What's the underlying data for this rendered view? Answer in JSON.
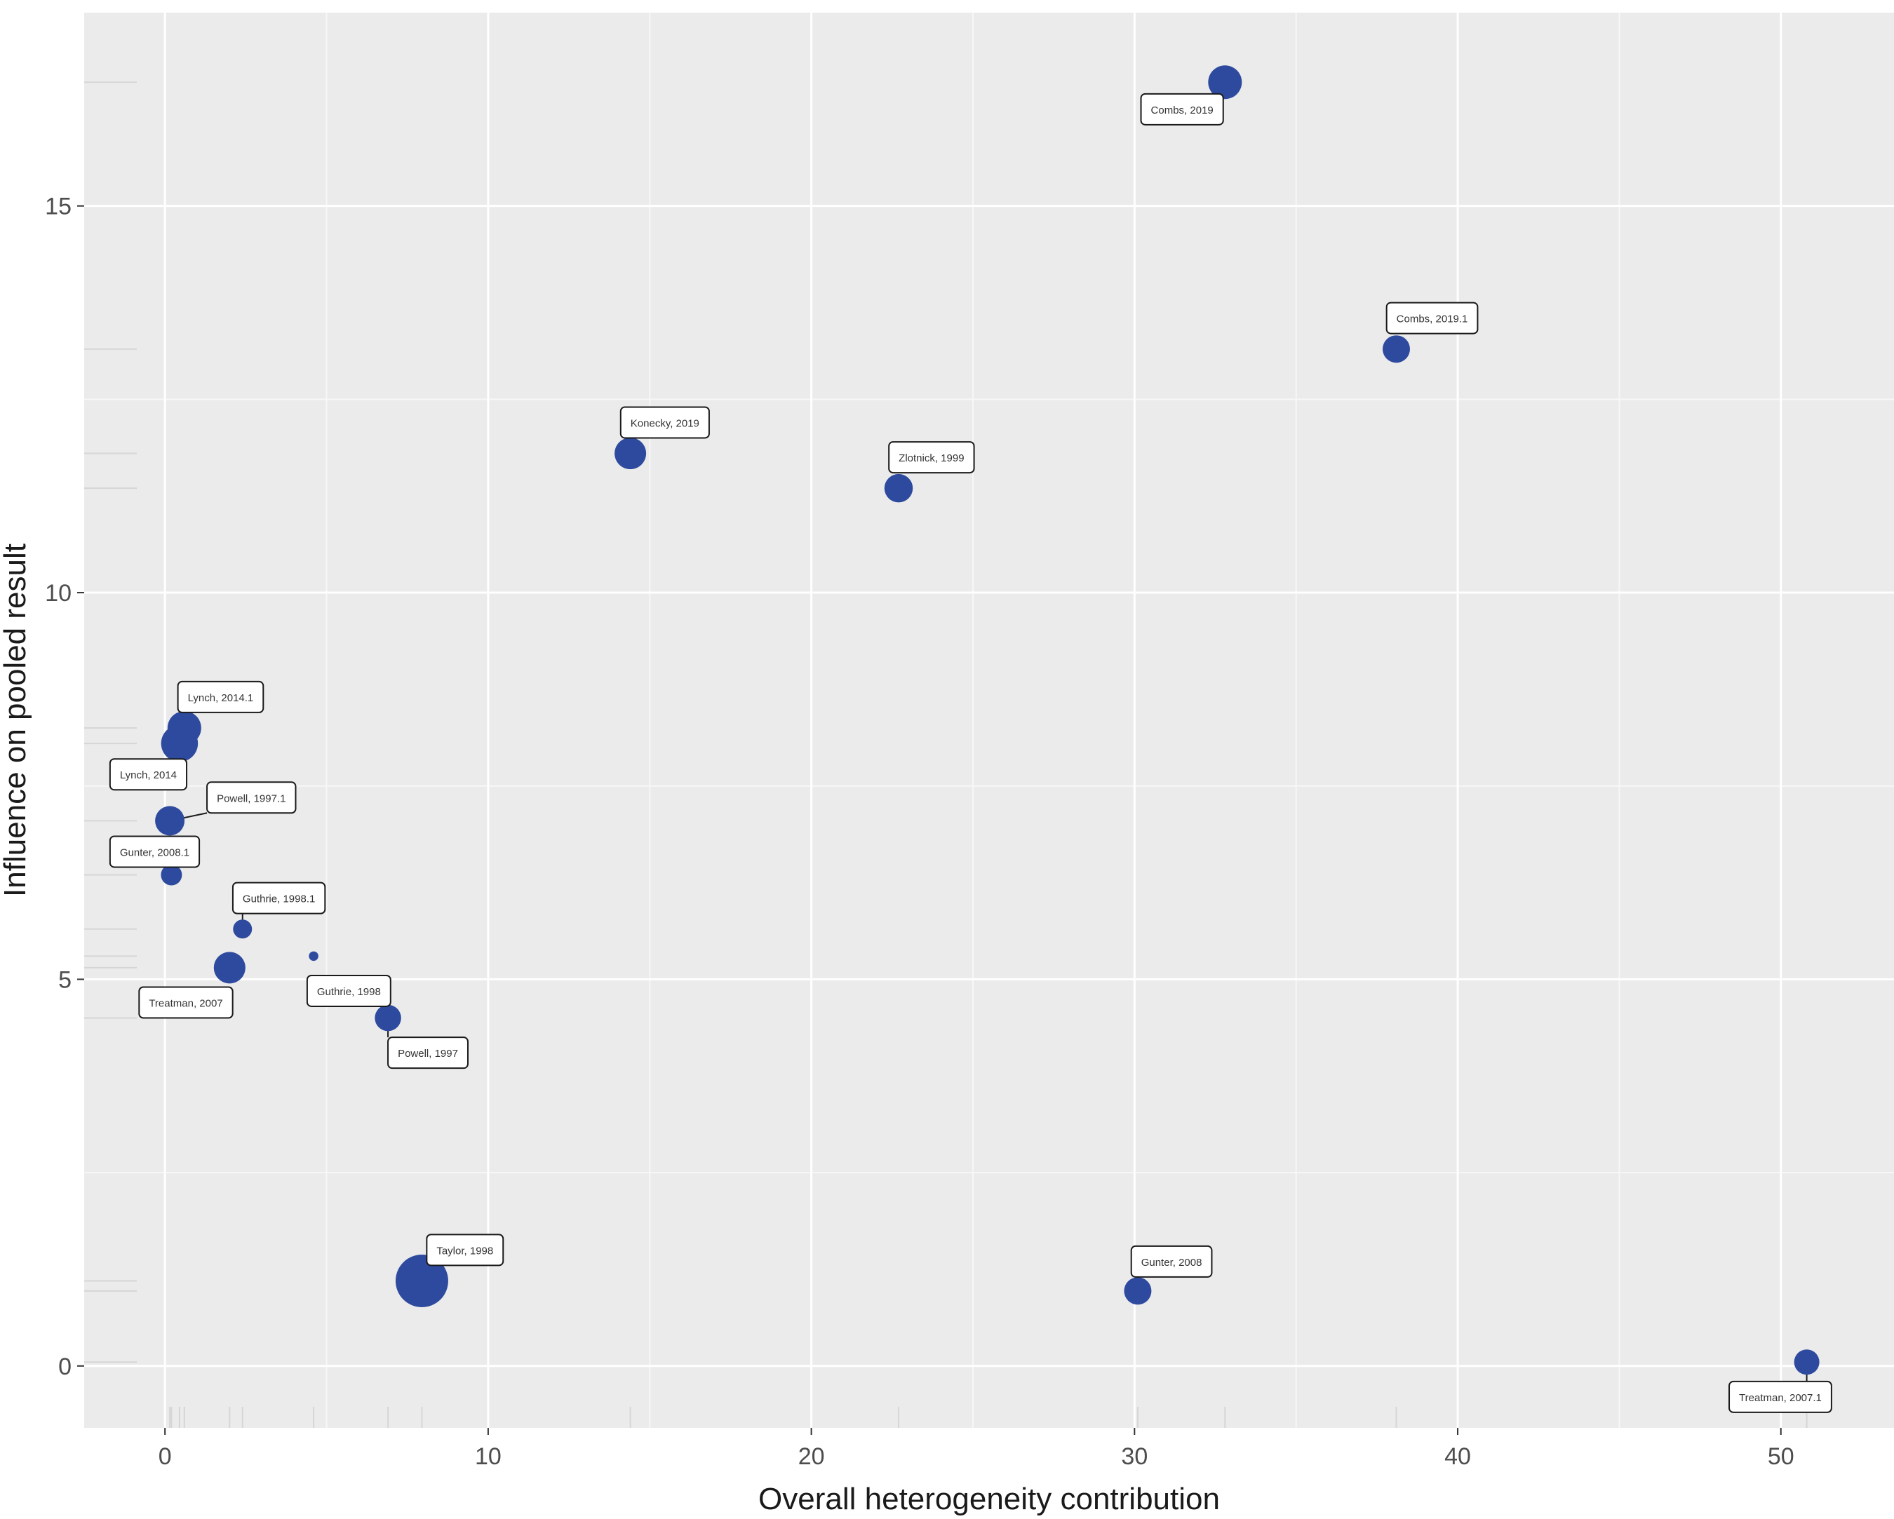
{
  "chart_data": {
    "type": "scatter",
    "xlabel": "Overall heterogeneity contribution",
    "ylabel": "Influence on pooled result",
    "xlim": [
      -2.5,
      53.5
    ],
    "ylim": [
      -0.8,
      17.5
    ],
    "x_ticks": [
      0,
      10,
      20,
      30,
      40,
      50
    ],
    "y_ticks": [
      0,
      5,
      10,
      15
    ],
    "grid": true,
    "point_color": "#2E4A9E",
    "panel_color": "#EBEBEB",
    "points": [
      {
        "label": "Combs, 2019",
        "x": 32.8,
        "y": 16.6,
        "size": 3.2,
        "lx": 30.2,
        "ly": 16.25
      },
      {
        "label": "Combs, 2019.1",
        "x": 38.1,
        "y": 13.15,
        "size": 2.6,
        "lx": 37.8,
        "ly": 13.55
      },
      {
        "label": "Konecky, 2019",
        "x": 14.4,
        "y": 11.8,
        "size": 3.0,
        "lx": 14.1,
        "ly": 12.2
      },
      {
        "label": "Zlotnick, 1999",
        "x": 22.7,
        "y": 11.35,
        "size": 2.7,
        "lx": 22.4,
        "ly": 11.75
      },
      {
        "label": "Lynch, 2014.1",
        "x": 0.6,
        "y": 8.25,
        "size": 3.2,
        "lx": 0.4,
        "ly": 8.65
      },
      {
        "label": "Lynch, 2014",
        "x": 0.45,
        "y": 8.05,
        "size": 3.5,
        "lx": -1.7,
        "ly": 7.65
      },
      {
        "label": "Powell, 1997.1",
        "x": 0.15,
        "y": 7.05,
        "size": 2.8,
        "lx": 1.3,
        "ly": 7.35
      },
      {
        "label": "Gunter, 2008.1",
        "x": 0.2,
        "y": 6.35,
        "size": 2.0,
        "lx": -1.7,
        "ly": 6.65
      },
      {
        "label": "Guthrie, 1998.1",
        "x": 2.4,
        "y": 5.65,
        "size": 1.8,
        "lx": 2.1,
        "ly": 6.05
      },
      {
        "label": "Treatman, 2007",
        "x": 2.0,
        "y": 5.15,
        "size": 3.0,
        "lx": -0.8,
        "ly": 4.7
      },
      {
        "label": "",
        "x": 4.6,
        "y": 5.3,
        "size": 0.9
      },
      {
        "label": "Guthrie, 1998",
        "x": null,
        "y": null,
        "size": 0,
        "lx": 4.4,
        "ly": 4.85
      },
      {
        "label": "Powell, 1997",
        "x": 6.9,
        "y": 4.5,
        "size": 2.5,
        "lx": 6.9,
        "ly": 4.05
      },
      {
        "label": "Taylor, 1998",
        "x": 7.95,
        "y": 1.1,
        "size": 5.0,
        "lx": 8.1,
        "ly": 1.5
      },
      {
        "label": "Gunter, 2008",
        "x": 30.1,
        "y": 0.97,
        "size": 2.6,
        "lx": 29.9,
        "ly": 1.35
      },
      {
        "label": "Treatman, 2007.1",
        "x": 50.8,
        "y": 0.05,
        "size": 2.4,
        "lx": 48.4,
        "ly": -0.4
      }
    ]
  }
}
